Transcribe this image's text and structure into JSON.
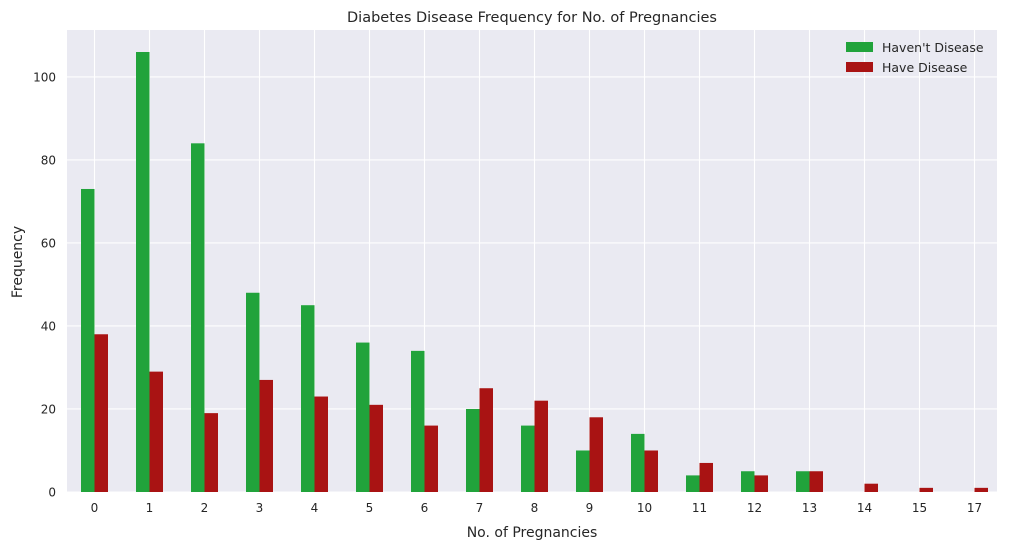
{
  "chart_data": {
    "type": "bar",
    "title": "Diabetes Disease Frequency for No. of Pregnancies",
    "xlabel": "No. of Pregnancies",
    "ylabel": "Frequency",
    "categories": [
      "0",
      "1",
      "2",
      "3",
      "4",
      "5",
      "6",
      "7",
      "8",
      "9",
      "10",
      "11",
      "12",
      "13",
      "14",
      "15",
      "17"
    ],
    "series": [
      {
        "name": "Haven't Disease",
        "color": "#21a33b",
        "values": [
          73,
          106,
          84,
          48,
          45,
          36,
          34,
          20,
          16,
          10,
          14,
          4,
          5,
          5,
          0,
          0,
          0
        ]
      },
      {
        "name": "Have Disease",
        "color": "#a91313",
        "values": [
          38,
          29,
          19,
          27,
          23,
          21,
          16,
          25,
          22,
          18,
          10,
          7,
          4,
          5,
          2,
          1,
          1
        ]
      }
    ],
    "ylim": [
      0,
      111.3
    ],
    "yticks": [
      "0",
      "20",
      "40",
      "60",
      "80",
      "100"
    ],
    "grid": true,
    "legend_position": "top-right",
    "plot_background": "#eaeaf2",
    "grid_color": "#ffffff"
  }
}
